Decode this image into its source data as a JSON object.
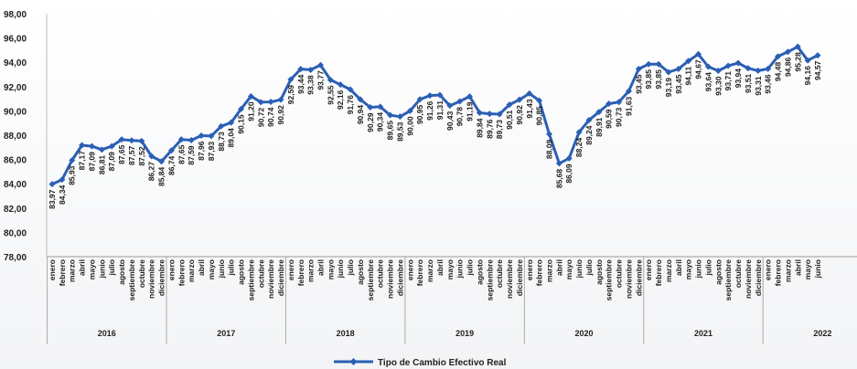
{
  "chart_data": {
    "type": "line",
    "title": "",
    "xlabel": "",
    "ylabel": "",
    "ylim": [
      78,
      98
    ],
    "yticks": [
      "78,00",
      "80,00",
      "82,00",
      "84,00",
      "86,00",
      "88,00",
      "90,00",
      "92,00",
      "94,00",
      "96,00",
      "98,00"
    ],
    "grid": false,
    "legend_position": "bottom",
    "months": [
      "enero",
      "febrero",
      "marzo",
      "abril",
      "mayo",
      "junio",
      "julio",
      "agosto",
      "septiembre",
      "octubre",
      "noviembre",
      "diciembre"
    ],
    "years": [
      "2016",
      "2017",
      "2018",
      "2019",
      "2020",
      "2021",
      "2022"
    ],
    "series": [
      {
        "name": "Tipo de Cambio Efectivo Real",
        "color": "#2b5fb4",
        "values": [
          83.97,
          84.34,
          85.93,
          87.17,
          87.09,
          86.81,
          87.09,
          87.65,
          87.57,
          87.52,
          86.27,
          85.84,
          86.74,
          87.65,
          87.59,
          87.96,
          87.93,
          88.73,
          89.04,
          90.15,
          91.2,
          90.72,
          90.74,
          90.92,
          92.59,
          93.44,
          93.38,
          93.77,
          92.55,
          92.16,
          91.76,
          90.94,
          90.29,
          90.34,
          89.65,
          89.53,
          90.0,
          90.95,
          91.26,
          91.31,
          90.43,
          90.78,
          91.19,
          89.84,
          89.76,
          89.73,
          90.51,
          90.92,
          91.43,
          90.85,
          88.09,
          85.68,
          86.09,
          88.24,
          89.24,
          89.91,
          90.59,
          90.73,
          91.63,
          93.45,
          93.85,
          93.85,
          93.19,
          93.45,
          94.11,
          94.67,
          93.64,
          93.3,
          93.71,
          93.94,
          93.51,
          93.31,
          93.46,
          94.48,
          94.86,
          95.28,
          94.16,
          94.57
        ],
        "labels": [
          "83,97",
          "84,34",
          "85,93",
          "87,17",
          "87,09",
          "86,81",
          "87,09",
          "87,65",
          "87,57",
          "87,52",
          "86,27",
          "85,84",
          "86,74",
          "87,65",
          "87,59",
          "87,96",
          "87,93",
          "88,73",
          "89,04",
          "90,15",
          "91,20",
          "90,72",
          "90,74",
          "90,92",
          "92,59",
          "93,44",
          "93,38",
          "93,77",
          "92,55",
          "92,16",
          "91,76",
          "90,94",
          "90,29",
          "90,34",
          "89,65",
          "89,53",
          "90,00",
          "90,95",
          "91,26",
          "91,31",
          "90,43",
          "90,78",
          "91,19",
          "89,84",
          "89,76",
          "89,73",
          "90,51",
          "90,92",
          "91,43",
          "90,85",
          "88,09",
          "85,68",
          "86,09",
          "88,24",
          "89,24",
          "89,91",
          "90,59",
          "90,73",
          "91,63",
          "93,45",
          "93,85",
          "93,85",
          "93,19",
          "93,45",
          "94,11",
          "94,67",
          "93,64",
          "93,30",
          "93,71",
          "93,94",
          "93,51",
          "93,31",
          "93,46",
          "94,48",
          "94,86",
          "95,28",
          "94,16",
          "94,57"
        ]
      }
    ]
  }
}
